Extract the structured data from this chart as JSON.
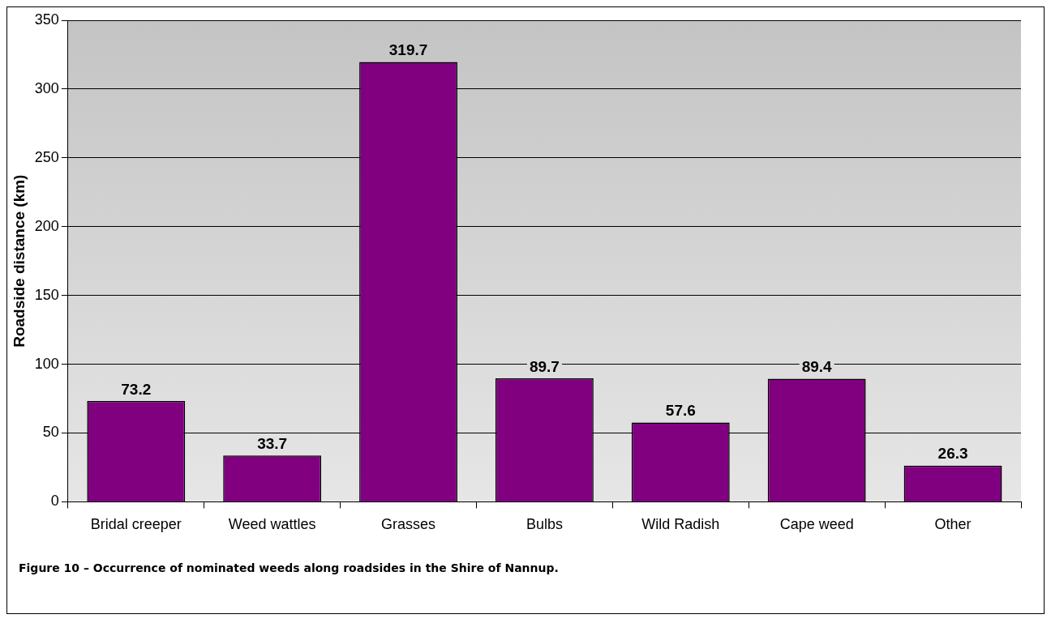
{
  "chart_data": {
    "type": "bar",
    "ylabel": "Roadside distance (km)",
    "categories": [
      "Bridal creeper",
      "Weed wattles",
      "Grasses",
      "Bulbs",
      "Wild Radish",
      "Cape weed",
      "Other"
    ],
    "values": [
      73.2,
      33.7,
      319.7,
      89.7,
      57.6,
      89.4,
      26.3
    ],
    "color": "#800080",
    "ylim": [
      0,
      350
    ],
    "yticks": [
      0,
      50,
      100,
      150,
      200,
      250,
      300,
      350
    ],
    "grid": "y",
    "data_labels": true,
    "legend": false,
    "annotations": [
      "Figure 10 – Occurrence of nominated weeds along roadsides in the Shire of Nannup."
    ]
  }
}
